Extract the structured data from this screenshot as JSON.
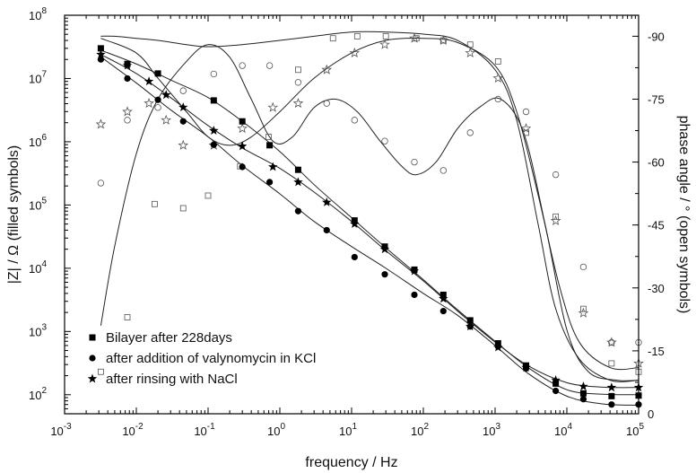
{
  "chart_data": {
    "type": "scatter",
    "title": "",
    "xlabel": "frequency / Hz",
    "ylabel_left": "|Z| / Ω (filled symbols)",
    "ylabel_right": "phase angle / ° (open symbols)",
    "x_scale": "log",
    "y_left_scale": "log",
    "xlim": [
      0.001,
      100000
    ],
    "ylim_left": [
      50,
      100000000
    ],
    "ylim_right": [
      0,
      -95
    ],
    "x_ticks": [
      {
        "base": "10",
        "exp": "-3"
      },
      {
        "base": "10",
        "exp": "-2"
      },
      {
        "base": "10",
        "exp": "-1"
      },
      {
        "base": "10",
        "exp": "0"
      },
      {
        "base": "10",
        "exp": "1"
      },
      {
        "base": "10",
        "exp": "2"
      },
      {
        "base": "10",
        "exp": "3"
      },
      {
        "base": "10",
        "exp": "4"
      },
      {
        "base": "10",
        "exp": "5"
      }
    ],
    "y_left_ticks": [
      {
        "base": "10",
        "exp": "2"
      },
      {
        "base": "10",
        "exp": "3"
      },
      {
        "base": "10",
        "exp": "4"
      },
      {
        "base": "10",
        "exp": "5"
      },
      {
        "base": "10",
        "exp": "6"
      },
      {
        "base": "10",
        "exp": "7"
      },
      {
        "base": "10",
        "exp": "8"
      }
    ],
    "y_right_ticks": [
      "0",
      "-15",
      "-30",
      "-45",
      "-60",
      "-75",
      "-90"
    ],
    "grid": false,
    "legend_position": "bottom-left",
    "series": [
      {
        "name": "Bilayer after 228days",
        "marker": "square",
        "impedance": [
          [
            0.0032,
            30000000
          ],
          [
            0.0075,
            17000000
          ],
          [
            0.02,
            12000000
          ],
          [
            0.12,
            4500000
          ],
          [
            0.3,
            2100000
          ],
          [
            0.72,
            880000
          ],
          [
            1.8,
            360000
          ],
          [
            11,
            57000
          ],
          [
            29,
            22000
          ],
          [
            75,
            9500
          ],
          [
            190,
            3800
          ],
          [
            450,
            1500
          ],
          [
            1100,
            650
          ],
          [
            2700,
            290
          ],
          [
            7000,
            150
          ],
          [
            17000,
            105
          ],
          [
            42000,
            95
          ],
          [
            100000,
            97
          ]
        ],
        "impedance_fit": [
          [
            0.0032,
            28000000
          ],
          [
            0.01,
            17000000
          ],
          [
            0.03,
            9500000
          ],
          [
            0.1,
            5000000
          ],
          [
            0.3,
            2100000
          ],
          [
            1,
            700000
          ],
          [
            3,
            210000
          ],
          [
            10,
            63000
          ],
          [
            30,
            21000
          ],
          [
            100,
            6600
          ],
          [
            300,
            2200
          ],
          [
            1000,
            700
          ],
          [
            3000,
            260
          ],
          [
            10000,
            120
          ],
          [
            30000,
            102
          ],
          [
            100000,
            100
          ]
        ],
        "phase": [
          [
            0.0032,
            -10
          ],
          [
            0.0075,
            -23
          ],
          [
            0.018,
            -50
          ],
          [
            0.045,
            -49
          ],
          [
            0.1,
            -52
          ],
          [
            0.28,
            -59
          ],
          [
            0.7,
            -66
          ],
          [
            1.8,
            -82
          ],
          [
            5.5,
            -89.5
          ],
          [
            12,
            -90
          ],
          [
            30,
            -90
          ],
          [
            80,
            -89.5
          ],
          [
            190,
            -89
          ],
          [
            450,
            -88
          ],
          [
            1100,
            -84
          ],
          [
            2700,
            -67
          ],
          [
            7000,
            -47
          ],
          [
            17000,
            -25
          ],
          [
            42000,
            -12
          ],
          [
            100000,
            -10
          ]
        ],
        "phase_fit": [
          [
            0.0032,
            -90
          ],
          [
            0.005,
            -90
          ],
          [
            0.01,
            -89.5
          ],
          [
            0.02,
            -89
          ],
          [
            0.05,
            -88
          ],
          [
            0.1,
            -87.5
          ],
          [
            0.3,
            -88
          ],
          [
            1,
            -89
          ],
          [
            3,
            -90
          ],
          [
            10,
            -91
          ],
          [
            30,
            -91
          ],
          [
            100,
            -90.5
          ],
          [
            300,
            -89
          ],
          [
            1000,
            -82
          ],
          [
            2000,
            -70
          ],
          [
            4000,
            -45
          ],
          [
            7000,
            -25
          ],
          [
            15000,
            -13
          ],
          [
            40000,
            -8
          ],
          [
            100000,
            -8
          ]
        ]
      },
      {
        "name": "after addition of valynomycin in KCl",
        "marker": "circle",
        "impedance": [
          [
            0.0032,
            20000000
          ],
          [
            0.0075,
            10000000
          ],
          [
            0.02,
            4600000
          ],
          [
            0.045,
            2100000
          ],
          [
            0.12,
            900000
          ],
          [
            0.3,
            400000
          ],
          [
            0.72,
            230000
          ],
          [
            1.8,
            80000
          ],
          [
            4.5,
            40000
          ],
          [
            11,
            15000
          ],
          [
            29,
            8000
          ],
          [
            75,
            3800
          ],
          [
            190,
            2100
          ],
          [
            450,
            1200
          ],
          [
            1100,
            580
          ],
          [
            2700,
            260
          ],
          [
            7000,
            115
          ],
          [
            17000,
            85
          ],
          [
            42000,
            70
          ],
          [
            100000,
            70
          ]
        ],
        "impedance_fit": [
          [
            0.0032,
            22000000
          ],
          [
            0.01,
            8500000
          ],
          [
            0.03,
            3200000
          ],
          [
            0.1,
            1200000
          ],
          [
            0.3,
            420000
          ],
          [
            1,
            150000
          ],
          [
            3,
            55000
          ],
          [
            10,
            22000
          ],
          [
            30,
            10000
          ],
          [
            100,
            4000
          ],
          [
            300,
            1800
          ],
          [
            1000,
            600
          ],
          [
            3000,
            210
          ],
          [
            10000,
            95
          ],
          [
            30000,
            72
          ],
          [
            100000,
            68
          ]
        ],
        "phase": [
          [
            0.0032,
            -55
          ],
          [
            0.0075,
            -70
          ],
          [
            0.02,
            -73
          ],
          [
            0.045,
            -77
          ],
          [
            0.12,
            -81
          ],
          [
            0.3,
            -83
          ],
          [
            0.72,
            -83
          ],
          [
            1.8,
            -79
          ],
          [
            4.5,
            -74
          ],
          [
            11,
            -70
          ],
          [
            29,
            -65
          ],
          [
            75,
            -60
          ],
          [
            190,
            -58
          ],
          [
            450,
            -67
          ],
          [
            1100,
            -75
          ],
          [
            2700,
            -72
          ],
          [
            7000,
            -57
          ],
          [
            17000,
            -35
          ],
          [
            42000,
            -17
          ],
          [
            100000,
            -17
          ]
        ],
        "phase_fit": [
          [
            0.0032,
            -21
          ],
          [
            0.005,
            -40
          ],
          [
            0.01,
            -62
          ],
          [
            0.02,
            -75
          ],
          [
            0.05,
            -84
          ],
          [
            0.1,
            -88
          ],
          [
            0.2,
            -85
          ],
          [
            0.4,
            -75
          ],
          [
            0.8,
            -65
          ],
          [
            1.5,
            -66
          ],
          [
            3,
            -73
          ],
          [
            6,
            -75
          ],
          [
            12,
            -72
          ],
          [
            25,
            -65
          ],
          [
            50,
            -59
          ],
          [
            80,
            -57
          ],
          [
            150,
            -60
          ],
          [
            300,
            -68
          ],
          [
            600,
            -73
          ],
          [
            1200,
            -75
          ],
          [
            2500,
            -67
          ],
          [
            5000,
            -45
          ],
          [
            10000,
            -20
          ],
          [
            20000,
            -10
          ],
          [
            50000,
            -8
          ],
          [
            100000,
            -8
          ]
        ]
      },
      {
        "name": "after rinsing with NaCl",
        "marker": "star",
        "impedance": [
          [
            0.0032,
            24000000
          ],
          [
            0.0075,
            16000000
          ],
          [
            0.015,
            9000000
          ],
          [
            0.026,
            5500000
          ],
          [
            0.045,
            3500000
          ],
          [
            0.12,
            1500000
          ],
          [
            0.3,
            850000
          ],
          [
            0.8,
            400000
          ],
          [
            1.8,
            230000
          ],
          [
            4.5,
            110000
          ],
          [
            11,
            50000
          ],
          [
            29,
            20000
          ],
          [
            75,
            9000
          ],
          [
            190,
            3300
          ],
          [
            450,
            1200
          ],
          [
            1100,
            560
          ],
          [
            2700,
            270
          ],
          [
            7000,
            170
          ],
          [
            17000,
            135
          ],
          [
            42000,
            130
          ],
          [
            100000,
            130
          ]
        ],
        "impedance_fit": [
          [
            0.0032,
            24000000
          ],
          [
            0.01,
            12000000
          ],
          [
            0.03,
            5000000
          ],
          [
            0.1,
            1800000
          ],
          [
            0.3,
            800000
          ],
          [
            1,
            380000
          ],
          [
            3,
            160000
          ],
          [
            10,
            55000
          ],
          [
            30,
            19000
          ],
          [
            100,
            6300
          ],
          [
            300,
            2100
          ],
          [
            1000,
            680
          ],
          [
            3000,
            280
          ],
          [
            10000,
            155
          ],
          [
            30000,
            132
          ],
          [
            100000,
            130
          ]
        ],
        "phase": [
          [
            0.0032,
            -69
          ],
          [
            0.0075,
            -72
          ],
          [
            0.015,
            -74
          ],
          [
            0.026,
            -70
          ],
          [
            0.045,
            -64
          ],
          [
            0.12,
            -64
          ],
          [
            0.3,
            -68
          ],
          [
            0.8,
            -73
          ],
          [
            1.8,
            -74
          ],
          [
            4.5,
            -82
          ],
          [
            11,
            -86
          ],
          [
            29,
            -88
          ],
          [
            75,
            -89.5
          ],
          [
            190,
            -89
          ],
          [
            450,
            -86
          ],
          [
            1100,
            -80
          ],
          [
            2700,
            -68
          ],
          [
            7000,
            -46
          ],
          [
            17000,
            -24
          ],
          [
            42000,
            -17
          ],
          [
            100000,
            -12
          ]
        ],
        "phase_fit": [
          [
            0.0032,
            -89.5
          ],
          [
            0.01,
            -86
          ],
          [
            0.02,
            -80
          ],
          [
            0.05,
            -72
          ],
          [
            0.1,
            -66
          ],
          [
            0.2,
            -64
          ],
          [
            0.4,
            -66
          ],
          [
            1,
            -72
          ],
          [
            3,
            -80
          ],
          [
            10,
            -86
          ],
          [
            30,
            -89
          ],
          [
            100,
            -89.5
          ],
          [
            300,
            -88.5
          ],
          [
            1000,
            -83
          ],
          [
            2000,
            -72
          ],
          [
            4000,
            -52
          ],
          [
            8000,
            -30
          ],
          [
            15000,
            -17
          ],
          [
            40000,
            -11
          ],
          [
            100000,
            -11
          ]
        ]
      }
    ]
  }
}
